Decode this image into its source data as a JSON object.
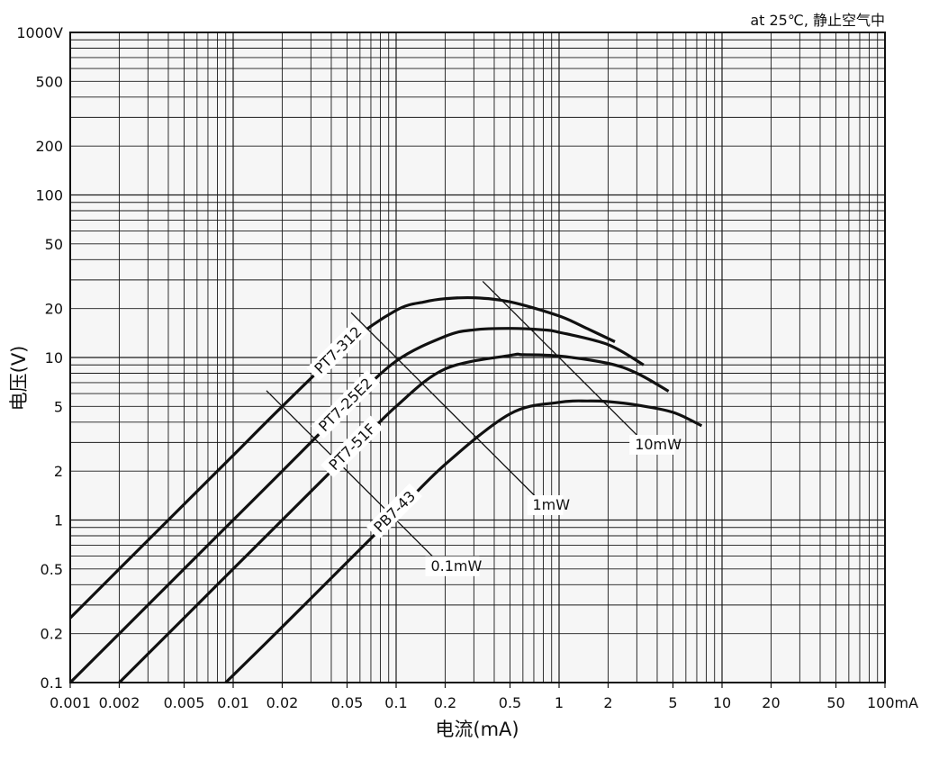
{
  "chart_data": {
    "type": "line",
    "scale": {
      "x": "log",
      "y": "log"
    },
    "grid": true,
    "xlim": [
      0.001,
      100
    ],
    "ylim": [
      0.1,
      1000
    ],
    "xlabel": "电流(mA)",
    "ylabel": "电压(V)",
    "annotation": "at 25℃, 静止空气中",
    "x_ticks": [
      {
        "v": 0.001,
        "label": "0.001"
      },
      {
        "v": 0.002,
        "label": "0.002"
      },
      {
        "v": 0.005,
        "label": "0.005"
      },
      {
        "v": 0.01,
        "label": "0.01"
      },
      {
        "v": 0.02,
        "label": "0.02"
      },
      {
        "v": 0.05,
        "label": "0.05"
      },
      {
        "v": 0.1,
        "label": "0.1"
      },
      {
        "v": 0.2,
        "label": "0.2"
      },
      {
        "v": 0.5,
        "label": "0.5"
      },
      {
        "v": 1,
        "label": "1"
      },
      {
        "v": 2,
        "label": "2"
      },
      {
        "v": 5,
        "label": "5"
      },
      {
        "v": 10,
        "label": "10"
      },
      {
        "v": 20,
        "label": "20"
      },
      {
        "v": 50,
        "label": "50"
      },
      {
        "v": 100,
        "label": "100mA"
      }
    ],
    "y_ticks": [
      {
        "v": 0.1,
        "label": "0.1"
      },
      {
        "v": 0.2,
        "label": "0.2"
      },
      {
        "v": 0.5,
        "label": "0.5"
      },
      {
        "v": 1,
        "label": "1"
      },
      {
        "v": 2,
        "label": "2"
      },
      {
        "v": 5,
        "label": "5"
      },
      {
        "v": 10,
        "label": "10"
      },
      {
        "v": 20,
        "label": "20"
      },
      {
        "v": 50,
        "label": "50"
      },
      {
        "v": 100,
        "label": "100"
      },
      {
        "v": 200,
        "label": "200"
      },
      {
        "v": 500,
        "label": "500"
      },
      {
        "v": 1000,
        "label": "1000V"
      }
    ],
    "series": [
      {
        "name": "PT7-312",
        "x": [
          0.001,
          0.002,
          0.005,
          0.01,
          0.02,
          0.05,
          0.1,
          0.15,
          0.2,
          0.3,
          0.5,
          1,
          1.5,
          2.2
        ],
        "y": [
          0.25,
          0.5,
          1.25,
          2.5,
          5,
          12,
          19.5,
          22,
          23,
          23.3,
          22,
          18,
          15,
          12.5
        ]
      },
      {
        "name": "PT7-25E2",
        "x": [
          0.001,
          0.002,
          0.005,
          0.01,
          0.02,
          0.05,
          0.1,
          0.2,
          0.3,
          0.5,
          0.8,
          1,
          2,
          3.3
        ],
        "y": [
          0.1,
          0.2,
          0.5,
          1,
          2,
          5,
          9.5,
          13.5,
          14.8,
          15.1,
          14.8,
          14.3,
          12,
          9
        ]
      },
      {
        "name": "PT7-51F",
        "x": [
          0.002,
          0.005,
          0.01,
          0.02,
          0.05,
          0.1,
          0.2,
          0.5,
          0.6,
          1,
          2,
          3,
          4.7
        ],
        "y": [
          0.1,
          0.25,
          0.5,
          1,
          2.5,
          5,
          8.5,
          10.3,
          10.4,
          10.2,
          9.2,
          8,
          6.2
        ]
      },
      {
        "name": "PB7-43",
        "x": [
          0.009,
          0.02,
          0.05,
          0.1,
          0.2,
          0.5,
          1,
          1.5,
          2,
          3,
          5,
          7.5
        ],
        "y": [
          0.1,
          0.22,
          0.55,
          1.1,
          2.2,
          4.5,
          5.3,
          5.4,
          5.35,
          5.1,
          4.6,
          3.8
        ]
      }
    ],
    "power_lines": [
      {
        "label": "0.1mW",
        "power_mW": 0.1,
        "x_range": [
          0.016,
          0.19
        ]
      },
      {
        "label": "1mW",
        "power_mW": 1,
        "x_range": [
          0.053,
          0.8
        ]
      },
      {
        "label": "10mW",
        "power_mW": 10,
        "x_range": [
          0.34,
          3.4
        ]
      }
    ]
  }
}
